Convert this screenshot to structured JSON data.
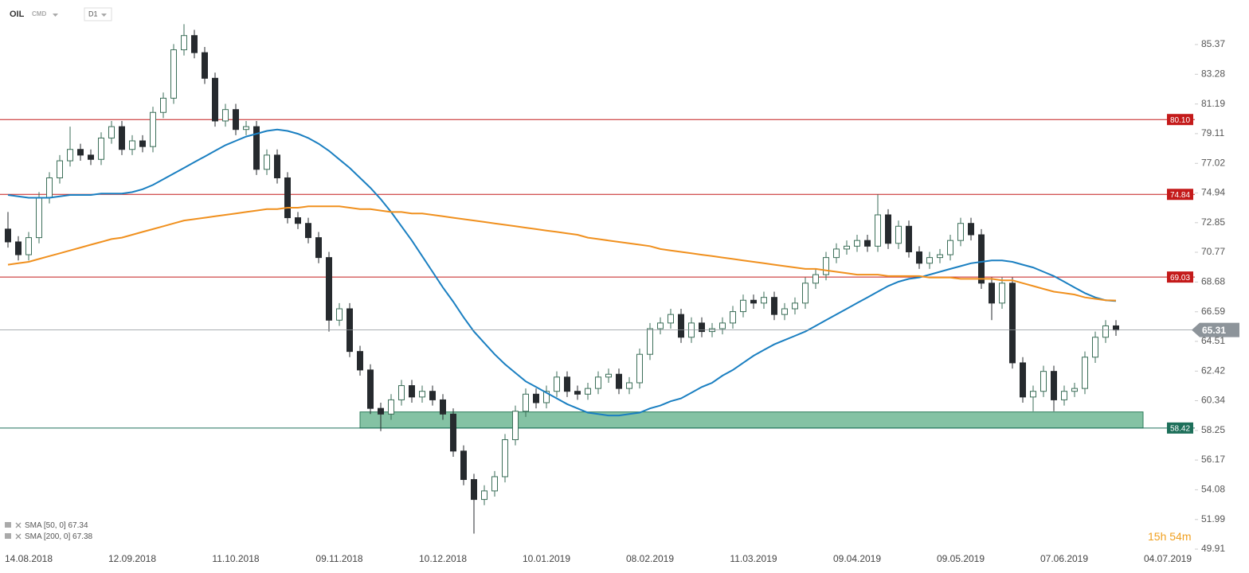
{
  "header": {
    "symbol": "OIL",
    "market": "CMD",
    "interval": "D1"
  },
  "chart_data": {
    "type": "candlestick",
    "categories": [
      null,
      null,
      "14.08.2018",
      null,
      null,
      null,
      null,
      null,
      null,
      null,
      null,
      null,
      "12.09.2018",
      null,
      null,
      null,
      null,
      null,
      null,
      null,
      null,
      null,
      "11.10.2018",
      null,
      null,
      null,
      null,
      null,
      null,
      null,
      null,
      null,
      "09.11.2018",
      null,
      null,
      null,
      null,
      null,
      null,
      null,
      null,
      null,
      "10.12.2018",
      null,
      null,
      null,
      null,
      null,
      null,
      null,
      null,
      null,
      "10.01.2019",
      null,
      null,
      null,
      null,
      null,
      null,
      null,
      null,
      null,
      "08.02.2019",
      null,
      null,
      null,
      null,
      null,
      null,
      null,
      null,
      null,
      "11.03.2019",
      null,
      null,
      null,
      null,
      null,
      null,
      null,
      null,
      null,
      "09.04.2019",
      null,
      null,
      null,
      null,
      null,
      null,
      null,
      null,
      null,
      "09.05.2019",
      null,
      null,
      null,
      null,
      null,
      null,
      null,
      null,
      null,
      "07.06.2019",
      null,
      null,
      null,
      null,
      null,
      null,
      null,
      null,
      null,
      "04.07.2019"
    ],
    "series": [
      {
        "name": "OIL",
        "type": "candlestick",
        "up_color": "#ffffff",
        "down_color": "#262a2e",
        "edge_color": "#3b6e58",
        "open": [
          72.4,
          71.5,
          70.6,
          71.8,
          74.6,
          76.0,
          77.2,
          78.0,
          77.6,
          77.3,
          78.8,
          79.6,
          78.0,
          78.6,
          78.2,
          80.6,
          81.6,
          85.0,
          86.0,
          84.8,
          83.0,
          80.0,
          80.8,
          79.4,
          79.6,
          76.6,
          77.6,
          76.0,
          73.2,
          72.8,
          71.8,
          70.4,
          66.0,
          66.8,
          63.8,
          62.5,
          59.8,
          59.4,
          60.4,
          61.4,
          60.6,
          61.0,
          60.4,
          59.4,
          56.8,
          54.8,
          53.4,
          54.0,
          55.0,
          57.6,
          59.6,
          60.8,
          60.2,
          61.0,
          62.0,
          61.0,
          60.8,
          61.2,
          62.0,
          62.2,
          61.2,
          61.6,
          63.6,
          65.4,
          65.8,
          66.4,
          64.8,
          65.8,
          65.2,
          65.4,
          65.8,
          66.6,
          67.4,
          67.2,
          67.6,
          66.4,
          66.8,
          67.2,
          68.6,
          69.2,
          70.4,
          71.0,
          71.2,
          71.6,
          71.2,
          73.4,
          71.4,
          72.6,
          70.8,
          70.0,
          70.4,
          70.6,
          71.6,
          72.8,
          72.0,
          68.6,
          67.2,
          68.6,
          63.0,
          60.6,
          61.0,
          62.4,
          60.4,
          61.0,
          61.2,
          63.4,
          64.8,
          65.6,
          null,
          null,
          null,
          null,
          null
        ],
        "high": [
          73.6,
          71.9,
          72.2,
          75.0,
          76.4,
          77.6,
          79.6,
          78.4,
          78.0,
          79.2,
          80.0,
          80.0,
          79.0,
          79.0,
          81.0,
          82.0,
          85.4,
          86.8,
          86.4,
          85.2,
          83.4,
          81.2,
          81.2,
          80.0,
          80.0,
          78.0,
          78.0,
          76.4,
          73.6,
          73.2,
          72.2,
          70.8,
          67.2,
          67.2,
          64.2,
          62.9,
          60.2,
          60.8,
          61.8,
          61.8,
          61.4,
          61.4,
          60.8,
          59.8,
          57.2,
          55.2,
          54.4,
          55.4,
          58.0,
          60.0,
          61.2,
          61.2,
          61.4,
          62.4,
          62.4,
          61.4,
          61.6,
          62.4,
          62.6,
          62.6,
          62.0,
          64.0,
          65.8,
          66.2,
          66.8,
          66.8,
          66.2,
          66.2,
          65.8,
          66.2,
          67.0,
          67.8,
          67.8,
          68.0,
          68.0,
          67.2,
          67.6,
          69.0,
          69.6,
          70.8,
          71.4,
          71.6,
          72.0,
          72.0,
          74.84,
          73.8,
          73.0,
          73.0,
          71.2,
          70.8,
          71.0,
          72.0,
          73.2,
          73.2,
          72.4,
          69.0,
          69.0,
          69.0,
          63.4,
          61.4,
          62.8,
          62.8,
          61.4,
          61.6,
          63.8,
          65.2,
          66.0,
          66.0,
          null,
          null,
          null,
          null,
          null
        ],
        "low": [
          71.1,
          70.2,
          70.2,
          71.4,
          74.2,
          75.6,
          76.8,
          77.2,
          76.9,
          76.9,
          78.4,
          77.6,
          77.6,
          77.8,
          77.8,
          80.2,
          81.2,
          84.6,
          84.4,
          82.6,
          79.6,
          79.6,
          79.0,
          79.0,
          76.2,
          76.2,
          75.6,
          72.8,
          72.4,
          71.4,
          70.0,
          65.2,
          65.6,
          63.4,
          62.1,
          59.4,
          58.2,
          59.0,
          60.0,
          60.2,
          60.2,
          60.0,
          59.0,
          56.4,
          54.4,
          51.0,
          53.0,
          53.6,
          54.6,
          57.2,
          59.2,
          59.8,
          59.8,
          60.6,
          60.6,
          60.4,
          60.4,
          60.8,
          61.6,
          60.8,
          60.8,
          61.2,
          63.2,
          65.0,
          65.4,
          64.4,
          64.4,
          64.8,
          64.8,
          65.0,
          65.4,
          66.2,
          66.8,
          66.8,
          66.0,
          66.0,
          66.4,
          66.8,
          68.2,
          68.8,
          70.0,
          70.6,
          70.8,
          70.8,
          70.8,
          71.0,
          71.0,
          70.4,
          69.6,
          69.6,
          70.0,
          70.2,
          71.2,
          71.6,
          68.2,
          66.0,
          66.8,
          62.6,
          60.2,
          59.6,
          60.6,
          59.6,
          60.0,
          60.6,
          60.8,
          63.0,
          64.4,
          64.9,
          null,
          null,
          null,
          null,
          null
        ],
        "close": [
          71.5,
          70.6,
          71.8,
          74.6,
          76.0,
          77.2,
          78.0,
          77.6,
          77.3,
          78.8,
          79.6,
          78.0,
          78.6,
          78.2,
          80.6,
          81.6,
          85.0,
          86.0,
          84.8,
          83.0,
          80.0,
          80.8,
          79.4,
          79.6,
          76.6,
          77.6,
          76.0,
          73.2,
          72.8,
          71.8,
          70.4,
          66.0,
          66.8,
          63.8,
          62.5,
          59.8,
          59.4,
          60.4,
          61.4,
          60.6,
          61.0,
          60.4,
          59.4,
          56.8,
          54.8,
          53.4,
          54.0,
          55.0,
          57.6,
          59.6,
          60.8,
          60.2,
          61.0,
          62.0,
          61.0,
          60.8,
          61.2,
          62.0,
          62.2,
          61.2,
          61.6,
          63.6,
          65.4,
          65.8,
          66.4,
          64.8,
          65.8,
          65.2,
          65.4,
          65.8,
          66.6,
          67.4,
          67.2,
          67.6,
          66.4,
          66.8,
          67.2,
          68.6,
          69.2,
          70.4,
          71.0,
          71.2,
          71.6,
          71.2,
          73.4,
          71.4,
          72.6,
          70.8,
          70.0,
          70.4,
          70.6,
          71.6,
          72.8,
          72.0,
          68.6,
          67.2,
          68.6,
          63.0,
          60.6,
          61.0,
          62.4,
          60.4,
          61.0,
          61.2,
          63.4,
          64.8,
          65.6,
          65.31,
          null,
          null,
          null,
          null,
          null
        ]
      },
      {
        "name": "SMA [50, 0]",
        "type": "line",
        "color": "#1a7fc1",
        "values": [
          74.8,
          74.7,
          74.6,
          74.6,
          74.6,
          74.7,
          74.8,
          74.8,
          74.8,
          74.9,
          74.9,
          74.9,
          75.0,
          75.2,
          75.5,
          75.9,
          76.3,
          76.7,
          77.1,
          77.5,
          77.9,
          78.3,
          78.6,
          78.9,
          79.1,
          79.3,
          79.4,
          79.3,
          79.1,
          78.8,
          78.4,
          77.9,
          77.3,
          76.7,
          76.0,
          75.3,
          74.5,
          73.6,
          72.6,
          71.6,
          70.5,
          69.4,
          68.3,
          67.3,
          66.2,
          65.2,
          64.4,
          63.6,
          62.9,
          62.3,
          61.7,
          61.3,
          60.9,
          60.5,
          60.1,
          59.8,
          59.5,
          59.4,
          59.3,
          59.3,
          59.4,
          59.5,
          59.8,
          60.0,
          60.3,
          60.5,
          60.9,
          61.3,
          61.6,
          62.1,
          62.5,
          63.0,
          63.5,
          63.9,
          64.3,
          64.6,
          64.9,
          65.2,
          65.6,
          66.0,
          66.4,
          66.8,
          67.2,
          67.6,
          68.0,
          68.4,
          68.7,
          68.9,
          69.0,
          69.2,
          69.4,
          69.6,
          69.8,
          70.0,
          70.1,
          70.2,
          70.2,
          70.1,
          69.9,
          69.7,
          69.4,
          69.1,
          68.7,
          68.3,
          67.9,
          67.6,
          67.4,
          67.34,
          null,
          null,
          null,
          null,
          null
        ]
      },
      {
        "name": "SMA [200, 0]",
        "type": "line",
        "color": "#f0901e",
        "values": [
          69.9,
          70.0,
          70.1,
          70.3,
          70.5,
          70.7,
          70.9,
          71.1,
          71.3,
          71.5,
          71.7,
          71.8,
          72.0,
          72.2,
          72.4,
          72.6,
          72.8,
          73.0,
          73.1,
          73.2,
          73.3,
          73.4,
          73.5,
          73.6,
          73.7,
          73.8,
          73.8,
          73.9,
          73.9,
          74.0,
          74.0,
          74.0,
          74.0,
          73.9,
          73.8,
          73.8,
          73.7,
          73.6,
          73.6,
          73.5,
          73.5,
          73.4,
          73.3,
          73.2,
          73.1,
          73.0,
          72.9,
          72.8,
          72.7,
          72.6,
          72.5,
          72.4,
          72.3,
          72.2,
          72.1,
          72.0,
          71.8,
          71.7,
          71.6,
          71.5,
          71.4,
          71.3,
          71.2,
          71.0,
          70.9,
          70.8,
          70.7,
          70.6,
          70.5,
          70.4,
          70.3,
          70.2,
          70.1,
          70.0,
          69.9,
          69.8,
          69.7,
          69.6,
          69.6,
          69.5,
          69.4,
          69.3,
          69.2,
          69.2,
          69.2,
          69.1,
          69.1,
          69.1,
          69.1,
          69.0,
          69.0,
          69.0,
          68.9,
          68.9,
          68.9,
          68.9,
          68.8,
          68.8,
          68.6,
          68.4,
          68.2,
          68.0,
          67.9,
          67.8,
          67.6,
          67.5,
          67.4,
          67.38,
          null,
          null,
          null,
          null,
          null
        ]
      }
    ],
    "ylim": [
      49.35,
      88.5
    ],
    "yticks": [
      85.37,
      83.28,
      81.19,
      79.11,
      77.02,
      74.94,
      72.85,
      70.77,
      68.68,
      66.59,
      64.51,
      62.42,
      60.34,
      58.25,
      56.17,
      54.08,
      51.99,
      49.91
    ],
    "levels": [
      {
        "value": 80.1,
        "label": "80.10",
        "color": "#c41a1a"
      },
      {
        "value": 74.84,
        "color": "#c41a1a"
      },
      {
        "value": 69.03,
        "color": "#c41a1a"
      },
      {
        "value": 58.42,
        "color": "#1d6f5a"
      }
    ],
    "zone": {
      "low": 58.42,
      "high": 59.55,
      "color": "#84c2a4",
      "edge": "#2f7d5c"
    },
    "current_color": "#8d949a"
  },
  "countdown": {
    "hours": "15h",
    "minutes": "54m"
  }
}
